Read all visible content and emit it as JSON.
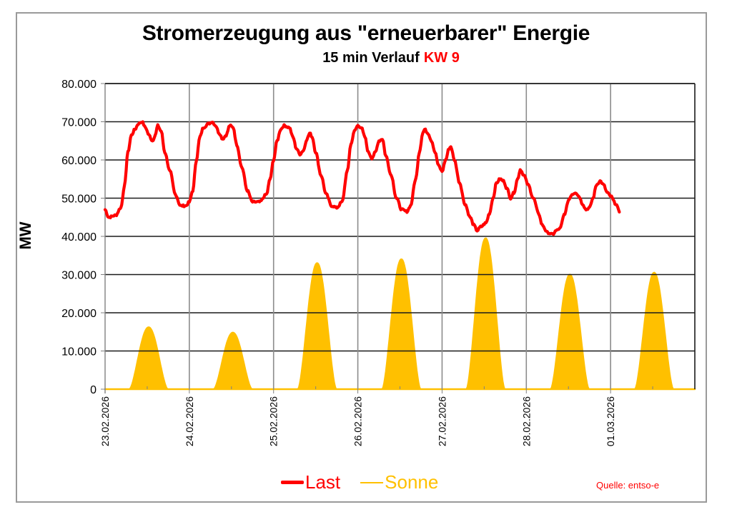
{
  "chart_data": {
    "type": "line",
    "title": "Stromerzeugung aus \"erneuerbarer\" Energie",
    "subtitle": "15 min Verlauf",
    "subtitle_highlight": "KW 9",
    "xlabel": "",
    "ylabel": "MW",
    "ylim": [
      0,
      80000
    ],
    "yticks": [
      0,
      10000,
      20000,
      30000,
      40000,
      50000,
      60000,
      70000,
      80000
    ],
    "ytick_labels": [
      "0",
      "10.000",
      "20.000",
      "30.000",
      "40.000",
      "50.000",
      "60.000",
      "70.000",
      "80.000"
    ],
    "x_unit": "hours since 23.02.2026 00:00",
    "xlim": [
      0,
      168
    ],
    "xticks": [
      0,
      24,
      48,
      72,
      96,
      120,
      144
    ],
    "xtick_labels": [
      "23.02.2026",
      "24.02.2026",
      "25.02.2026",
      "26.02.2026",
      "27.02.2026",
      "28.02.2026",
      "01.03.2026"
    ],
    "grid": true,
    "legend_position": "bottom-center",
    "series": [
      {
        "name": "Last",
        "color": "#ff0000",
        "kind": "line",
        "points": [
          [
            0,
            47000
          ],
          [
            1,
            45000
          ],
          [
            3,
            45500
          ],
          [
            4.5,
            47500
          ],
          [
            5.5,
            53000
          ],
          [
            6.5,
            62000
          ],
          [
            7.5,
            66500
          ],
          [
            8.5,
            68000
          ],
          [
            9.5,
            69500
          ],
          [
            10.5,
            70000
          ],
          [
            11.5,
            68500
          ],
          [
            12.5,
            66500
          ],
          [
            13.5,
            65000
          ],
          [
            14.3,
            66500
          ],
          [
            15,
            69000
          ],
          [
            16,
            67500
          ],
          [
            17,
            62000
          ],
          [
            18.5,
            57000
          ],
          [
            20,
            51000
          ],
          [
            21.5,
            48000
          ],
          [
            23,
            48000
          ],
          [
            24,
            49000
          ],
          [
            25,
            52000
          ],
          [
            26,
            60000
          ],
          [
            27,
            66000
          ],
          [
            28,
            68500
          ],
          [
            29.5,
            69500
          ],
          [
            30.5,
            70000
          ],
          [
            31.5,
            69000
          ],
          [
            32.5,
            67000
          ],
          [
            33.5,
            65500
          ],
          [
            34.5,
            66500
          ],
          [
            35.5,
            69000
          ],
          [
            36.5,
            68500
          ],
          [
            37.5,
            64000
          ],
          [
            39,
            58000
          ],
          [
            40.5,
            52000
          ],
          [
            42,
            49000
          ],
          [
            44,
            49000
          ],
          [
            46,
            51000
          ],
          [
            47,
            55000
          ],
          [
            48,
            60000
          ],
          [
            49,
            65000
          ],
          [
            50,
            68000
          ],
          [
            51,
            69000
          ],
          [
            52.5,
            68500
          ],
          [
            53.5,
            66000
          ],
          [
            54.5,
            63000
          ],
          [
            55.5,
            61500
          ],
          [
            56.5,
            62500
          ],
          [
            57.5,
            65500
          ],
          [
            58.3,
            67000
          ],
          [
            59,
            66000
          ],
          [
            60,
            62000
          ],
          [
            61.5,
            56000
          ],
          [
            63,
            51000
          ],
          [
            64.5,
            48000
          ],
          [
            66,
            47500
          ],
          [
            67.5,
            49000
          ],
          [
            69,
            57000
          ],
          [
            70,
            64000
          ],
          [
            71,
            67500
          ],
          [
            72,
            69000
          ],
          [
            73,
            68500
          ],
          [
            74,
            66000
          ],
          [
            75,
            62000
          ],
          [
            76,
            60500
          ],
          [
            77,
            62000
          ],
          [
            78,
            65000
          ],
          [
            79,
            65500
          ],
          [
            80,
            61000
          ],
          [
            81.5,
            56000
          ],
          [
            83,
            50000
          ],
          [
            84.5,
            47000
          ],
          [
            86,
            46500
          ],
          [
            87,
            48000
          ],
          [
            88.5,
            55000
          ],
          [
            89.5,
            62000
          ],
          [
            90.5,
            67000
          ],
          [
            91,
            68000
          ],
          [
            92,
            67000
          ],
          [
            93,
            65000
          ],
          [
            94,
            62000
          ],
          [
            95,
            58500
          ],
          [
            96,
            57000
          ],
          [
            97,
            60000
          ],
          [
            98,
            63000
          ],
          [
            98.5,
            63500
          ],
          [
            99.5,
            60000
          ],
          [
            101,
            54000
          ],
          [
            102.5,
            48500
          ],
          [
            104,
            45000
          ],
          [
            105,
            43000
          ],
          [
            106,
            41500
          ],
          [
            107,
            42500
          ],
          [
            108.5,
            43500
          ],
          [
            109.5,
            46000
          ],
          [
            110.5,
            50000
          ],
          [
            111.5,
            54000
          ],
          [
            112.5,
            55000
          ],
          [
            113.5,
            54500
          ],
          [
            114.5,
            52500
          ],
          [
            115.5,
            50000
          ],
          [
            116.5,
            51500
          ],
          [
            117.5,
            55000
          ],
          [
            118.3,
            57500
          ],
          [
            119.3,
            56000
          ],
          [
            120.5,
            53500
          ],
          [
            122,
            50000
          ],
          [
            123.5,
            46000
          ],
          [
            124.5,
            43000
          ],
          [
            126,
            41000
          ],
          [
            127.5,
            40500
          ],
          [
            128.5,
            41500
          ],
          [
            129.5,
            42000
          ],
          [
            131,
            46000
          ],
          [
            132,
            49500
          ],
          [
            133,
            51000
          ],
          [
            134,
            51500
          ],
          [
            135,
            50500
          ],
          [
            136,
            48500
          ],
          [
            137,
            47000
          ],
          [
            138,
            47500
          ],
          [
            139,
            50000
          ],
          [
            140,
            53500
          ],
          [
            141,
            54500
          ],
          [
            142,
            53500
          ],
          [
            143,
            51500
          ],
          [
            144,
            50500
          ],
          [
            145.5,
            48500
          ],
          [
            146.5,
            46500
          ]
        ]
      },
      {
        "name": "Sonne",
        "color": "#ffc000",
        "kind": "area",
        "daily_profile": {
          "sunrise_hour": 7.0,
          "sunset_hour": 17.8
        },
        "daily_peaks": [
          {
            "date": "23.02.2026",
            "peak": 16200
          },
          {
            "date": "24.02.2026",
            "peak": 14800
          },
          {
            "date": "25.02.2026",
            "peak": 33000
          },
          {
            "date": "26.02.2026",
            "peak": 34000
          },
          {
            "date": "27.02.2026",
            "peak": 39500
          },
          {
            "date": "28.02.2026",
            "peak": 30000
          },
          {
            "date": "01.03.2026",
            "peak": 30500
          }
        ]
      }
    ]
  },
  "legend": {
    "last_label": "Last",
    "sonne_label": "Sonne"
  },
  "source_note": "Quelle: entso-e"
}
